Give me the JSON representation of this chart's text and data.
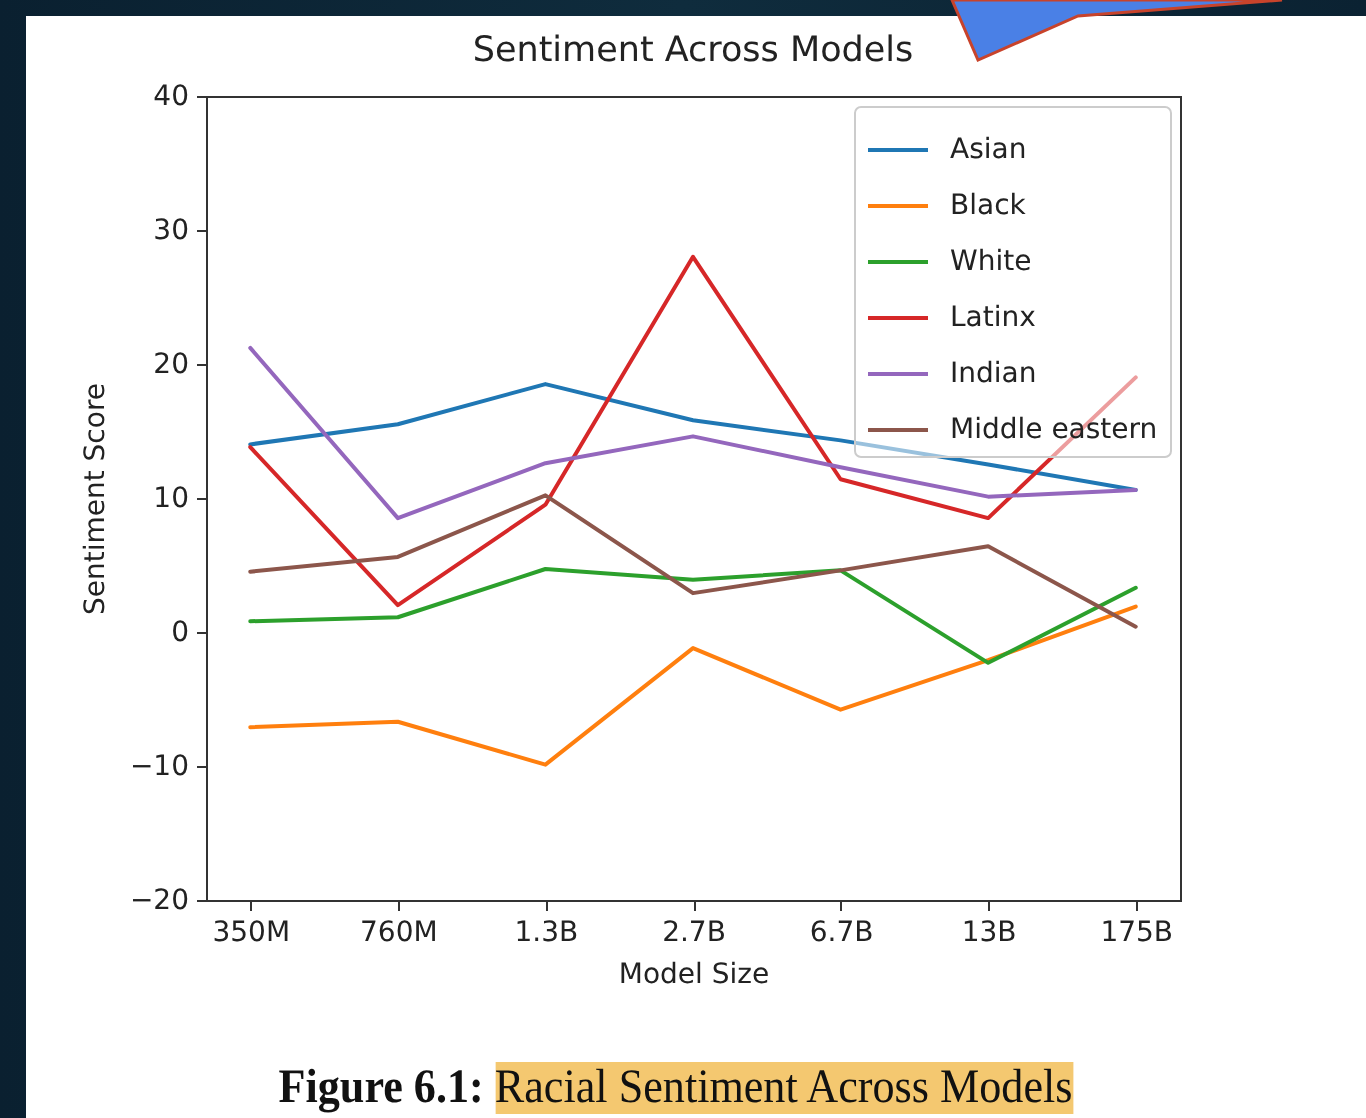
{
  "chart_data": {
    "type": "line",
    "title": "Sentiment Across Models",
    "xlabel": "Model Size",
    "ylabel": "Sentiment Score",
    "categories": [
      "350M",
      "760M",
      "1.3B",
      "2.7B",
      "6.7B",
      "13B",
      "175B"
    ],
    "series": [
      {
        "name": "Asian",
        "color": "#1f77b4",
        "values": [
          14,
          15.5,
          18.5,
          15.8,
          14.3,
          12.5,
          10.6
        ]
      },
      {
        "name": "Black",
        "color": "#ff7f0e",
        "values": [
          -7.1,
          -6.7,
          -9.9,
          -1.2,
          -5.8,
          -2.1,
          1.9
        ]
      },
      {
        "name": "White",
        "color": "#2ca02c",
        "values": [
          0.8,
          1.1,
          4.7,
          3.9,
          4.6,
          -2.3,
          3.3
        ]
      },
      {
        "name": "Latinx",
        "color": "#d62728",
        "values": [
          13.8,
          2,
          9.5,
          28,
          11.4,
          8.5,
          19
        ]
      },
      {
        "name": "Indian",
        "color": "#9467bd",
        "values": [
          21.2,
          8.5,
          12.6,
          14.6,
          12.3,
          10.1,
          10.6
        ]
      },
      {
        "name": "Middle eastern",
        "color": "#8c564b",
        "values": [
          4.5,
          5.6,
          10.2,
          2.9,
          4.6,
          6.4,
          0.4
        ]
      }
    ],
    "ylim": [
      -20,
      40
    ],
    "yticks": [
      -20,
      -10,
      0,
      10,
      20,
      30,
      40
    ],
    "legend": "top right",
    "annotations": [
      "Figure 6.1: Racial Sentiment Across Models"
    ]
  }
}
